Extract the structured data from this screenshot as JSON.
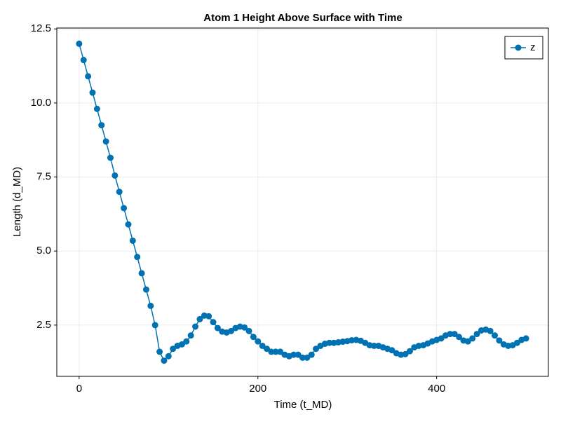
{
  "chart_data": {
    "type": "scatterlines",
    "title": "Atom 1 Height Above Surface with Time",
    "xlabel": "Time (t_MD)",
    "ylabel": "Length (d_MD)",
    "x": [
      0,
      5,
      10,
      15,
      20,
      25,
      30,
      35,
      40,
      45,
      50,
      55,
      60,
      65,
      70,
      75,
      80,
      85,
      90,
      95,
      100,
      105,
      110,
      115,
      120,
      125,
      130,
      135,
      140,
      145,
      150,
      155,
      160,
      165,
      170,
      175,
      180,
      185,
      190,
      195,
      200,
      205,
      210,
      215,
      220,
      225,
      230,
      235,
      240,
      245,
      250,
      255,
      260,
      265,
      270,
      275,
      280,
      285,
      290,
      295,
      300,
      305,
      310,
      315,
      320,
      325,
      330,
      335,
      340,
      345,
      350,
      355,
      360,
      365,
      370,
      375,
      380,
      385,
      390,
      395,
      400,
      405,
      410,
      415,
      420,
      425,
      430,
      435,
      440,
      445,
      450,
      455,
      460,
      465,
      470,
      475,
      480,
      485,
      490,
      495,
      500
    ],
    "series": [
      {
        "name": "z",
        "color": "#0072b2",
        "values": [
          12.0,
          11.45,
          10.9,
          10.35,
          9.8,
          9.25,
          8.7,
          8.15,
          7.55,
          7.0,
          6.45,
          5.9,
          5.35,
          4.8,
          4.25,
          3.7,
          3.15,
          2.5,
          1.6,
          1.3,
          1.45,
          1.7,
          1.8,
          1.85,
          1.95,
          2.15,
          2.45,
          2.7,
          2.82,
          2.8,
          2.6,
          2.4,
          2.28,
          2.25,
          2.3,
          2.4,
          2.45,
          2.42,
          2.3,
          2.1,
          1.95,
          1.8,
          1.7,
          1.6,
          1.6,
          1.6,
          1.5,
          1.45,
          1.5,
          1.5,
          1.4,
          1.4,
          1.5,
          1.7,
          1.8,
          1.87,
          1.9,
          1.9,
          1.92,
          1.94,
          1.96,
          1.99,
          2.0,
          1.97,
          1.9,
          1.82,
          1.8,
          1.8,
          1.75,
          1.7,
          1.65,
          1.55,
          1.5,
          1.52,
          1.62,
          1.75,
          1.8,
          1.82,
          1.88,
          1.95,
          2.0,
          2.05,
          2.15,
          2.2,
          2.2,
          2.1,
          1.98,
          1.95,
          2.05,
          2.2,
          2.32,
          2.35,
          2.3,
          2.15,
          1.98,
          1.85,
          1.8,
          1.82,
          1.9,
          2.0,
          2.05
        ]
      }
    ],
    "xlim": [
      -25,
      525
    ],
    "ylim": [
      0.77,
      12.53
    ],
    "xticks": [
      0,
      200,
      400
    ],
    "yticks": [
      2.5,
      {
        "value": 5,
        "label": "5.0"
      },
      7.5,
      {
        "value": 10,
        "label": "10.0"
      },
      12.5
    ],
    "grid": true,
    "legend": "top-right"
  }
}
